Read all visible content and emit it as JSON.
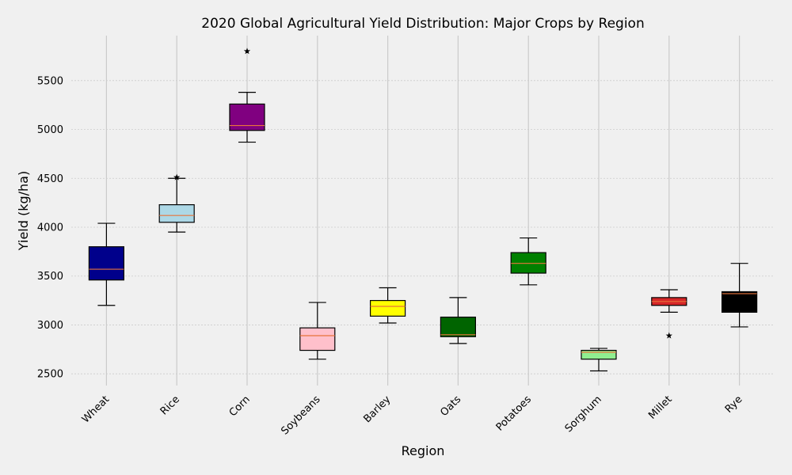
{
  "chart_data": {
    "type": "box",
    "title": "2020 Global Agricultural Yield Distribution: Major Crops by Region",
    "xlabel": "Region",
    "ylabel": "Yield (kg/ha)",
    "ylim": [
      2380,
      5960
    ],
    "yticks": [
      2500,
      3000,
      3500,
      4000,
      4500,
      5000,
      5500
    ],
    "grid": true,
    "categories": [
      "Wheat",
      "Rice",
      "Corn",
      "Soybeans",
      "Barley",
      "Oats",
      "Potatoes",
      "Sorghum",
      "Millet",
      "Rye"
    ],
    "boxes": [
      {
        "category": "Wheat",
        "whisker_low": 3200,
        "q1": 3460,
        "median": 3570,
        "q3": 3800,
        "whisker_high": 4040,
        "outliers": [],
        "color": "#00008b"
      },
      {
        "category": "Rice",
        "whisker_low": 3950,
        "q1": 4050,
        "median": 4120,
        "q3": 4230,
        "whisker_high": 4500,
        "outliers": [
          4510
        ],
        "color": "#add8e6"
      },
      {
        "category": "Corn",
        "whisker_low": 4870,
        "q1": 4990,
        "median": 5040,
        "q3": 5260,
        "whisker_high": 5380,
        "outliers": [
          5800
        ],
        "color": "#800080"
      },
      {
        "category": "Soybeans",
        "whisker_low": 2650,
        "q1": 2740,
        "median": 2890,
        "q3": 2970,
        "whisker_high": 3230,
        "outliers": [],
        "color": "#ffc0cb"
      },
      {
        "category": "Barley",
        "whisker_low": 3020,
        "q1": 3090,
        "median": 3190,
        "q3": 3250,
        "whisker_high": 3380,
        "outliers": [],
        "color": "#ffff00"
      },
      {
        "category": "Oats",
        "whisker_low": 2810,
        "q1": 2880,
        "median": 2900,
        "q3": 3080,
        "whisker_high": 3280,
        "outliers": [],
        "color": "#006400"
      },
      {
        "category": "Potatoes",
        "whisker_low": 3410,
        "q1": 3530,
        "median": 3630,
        "q3": 3740,
        "whisker_high": 3890,
        "outliers": [],
        "color": "#008000"
      },
      {
        "category": "Sorghum",
        "whisker_low": 2530,
        "q1": 2650,
        "median": 2720,
        "q3": 2740,
        "whisker_high": 2760,
        "outliers": [],
        "color": "#90ee90"
      },
      {
        "category": "Millet",
        "whisker_low": 3130,
        "q1": 3200,
        "median": 3240,
        "q3": 3280,
        "whisker_high": 3360,
        "outliers": [
          2890
        ],
        "color": "#d62728"
      },
      {
        "category": "Rye",
        "whisker_low": 2980,
        "q1": 3130,
        "median": 3320,
        "q3": 3340,
        "whisker_high": 3630,
        "outliers": [],
        "color": "#000000"
      }
    ],
    "median_color": "#e8743b",
    "grid_color": "#cbcbcb"
  }
}
